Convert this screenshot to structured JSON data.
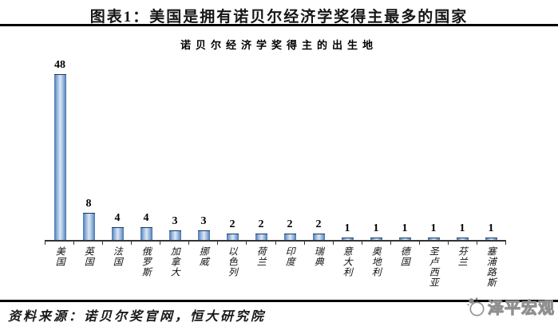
{
  "header": {
    "title": "图表1：美国是拥有诺贝尔经济学奖得主最多的国家"
  },
  "chart_data": {
    "type": "bar",
    "title": "诺贝尔经济学奖得主的出生地",
    "categories": [
      "美国",
      "英国",
      "法国",
      "俄罗斯",
      "加拿大",
      "挪威",
      "以色列",
      "荷兰",
      "印度",
      "瑞典",
      "意大利",
      "奥地利",
      "德国",
      "圣卢西亚",
      "芬兰",
      "塞浦路斯"
    ],
    "values": [
      48,
      8,
      4,
      4,
      3,
      3,
      2,
      2,
      2,
      2,
      1,
      1,
      1,
      1,
      1,
      1
    ],
    "xlabel": "",
    "ylabel": "",
    "ylim": [
      0,
      52
    ],
    "grid": false,
    "legend": false,
    "data_labels": true,
    "bar_colors": {
      "edge": "#4676b4",
      "mid": "#8fb0d8",
      "center": "#dce8f5",
      "outline": "#17375e"
    },
    "axis_color": "#333333"
  },
  "footer": {
    "source": "资料来源：诺贝尔奖官网，恒大研究院",
    "watermark": "泽平宏观"
  }
}
